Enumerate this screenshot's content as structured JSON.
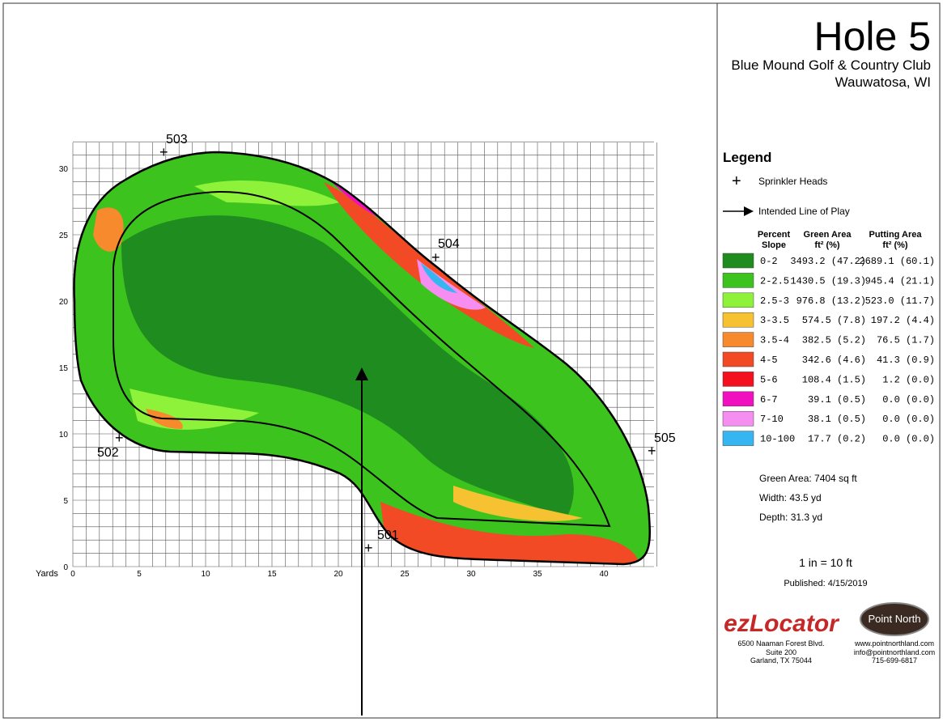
{
  "header": {
    "title": "Hole 5",
    "club": "Blue Mound Golf & Country Club",
    "location": "Wauwatosa, WI"
  },
  "axis": {
    "label": "Yards",
    "xticks": [
      "0",
      "5",
      "10",
      "15",
      "20",
      "25",
      "30",
      "35",
      "40"
    ],
    "yticks": [
      "0",
      "5",
      "10",
      "15",
      "20",
      "25",
      "30"
    ]
  },
  "sprinklers": [
    "501",
    "502",
    "503",
    "504",
    "505"
  ],
  "legend": {
    "title": "Legend",
    "sprinkler": "Sprinkler Heads",
    "line": "Intended Line of Play",
    "columns": [
      "Percent Slope",
      "Green Area ft² (%)",
      "Putting Area ft² (%)"
    ],
    "rows": [
      {
        "slope": "0-2",
        "green": "3493.2 (47.2)",
        "putting": "2689.1 (60.1)",
        "color": "#1e8c1e"
      },
      {
        "slope": "2-2.5",
        "green": "1430.5 (19.3)",
        "putting": "945.4 (21.1)",
        "color": "#3cc31e"
      },
      {
        "slope": "2.5-3",
        "green": "976.8 (13.2)",
        "putting": "523.0 (11.7)",
        "color": "#8ef23a"
      },
      {
        "slope": "3-3.5",
        "green": "574.5 (7.8)",
        "putting": "197.2 (4.4)",
        "color": "#f7c232"
      },
      {
        "slope": "3.5-4",
        "green": "382.5 (5.2)",
        "putting": "76.5 (1.7)",
        "color": "#f78a2c"
      },
      {
        "slope": "4-5",
        "green": "342.6 (4.6)",
        "putting": "41.3 (0.9)",
        "color": "#f34a26"
      },
      {
        "slope": "5-6",
        "green": "108.4 (1.5)",
        "putting": "1.2 (0.0)",
        "color": "#f5101e"
      },
      {
        "slope": "6-7",
        "green": "39.1 (0.5)",
        "putting": "0.0 (0.0)",
        "color": "#f010c0"
      },
      {
        "slope": "7-10",
        "green": "38.1 (0.5)",
        "putting": "0.0 (0.0)",
        "color": "#f58ef0"
      },
      {
        "slope": "10-100",
        "green": "17.7 (0.2)",
        "putting": "0.0 (0.0)",
        "color": "#36b6f0"
      }
    ]
  },
  "stats": [
    "Green Area: 7404 sq ft",
    "Width: 43.5 yd",
    "Depth: 31.3 yd"
  ],
  "scale": "1 in = 10 ft",
  "published": "Published: 4/15/2019",
  "ezlocator": {
    "name": "ezLocator",
    "address": [
      "6500 Naaman Forest Blvd.",
      "Suite 200",
      "Garland, TX  75044"
    ]
  },
  "pointnorth": {
    "name": "Point North",
    "contact": [
      "www.pointnorthland.com",
      "info@pointnorthland.com",
      "715-699-6817"
    ]
  }
}
